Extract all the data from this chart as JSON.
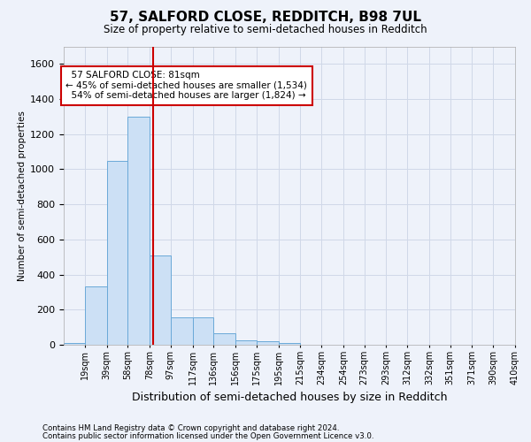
{
  "title": "57, SALFORD CLOSE, REDDITCH, B98 7UL",
  "subtitle": "Size of property relative to semi-detached houses in Redditch",
  "xlabel": "Distribution of semi-detached houses by size in Redditch",
  "ylabel": "Number of semi-detached properties",
  "footnote1": "Contains HM Land Registry data © Crown copyright and database right 2024.",
  "footnote2": "Contains public sector information licensed under the Open Government Licence v3.0.",
  "property_size": 81,
  "property_label": "57 SALFORD CLOSE: 81sqm",
  "pct_smaller": 45,
  "pct_larger": 54,
  "n_smaller": 1534,
  "n_larger": 1824,
  "bar_color": "#cce0f5",
  "bar_edge_color": "#6aa9d8",
  "vline_color": "#cc0000",
  "annotation_box_color": "#cc0000",
  "ylim": [
    0,
    1700
  ],
  "bin_starts": [
    0,
    19,
    39,
    58,
    78,
    97,
    117,
    136,
    156,
    175,
    195,
    215,
    234,
    254,
    273,
    293,
    312,
    332,
    351,
    371,
    390
  ],
  "bin_ends": [
    19,
    39,
    58,
    78,
    97,
    117,
    136,
    156,
    175,
    195,
    215,
    234,
    254,
    273,
    293,
    312,
    332,
    351,
    371,
    390,
    410
  ],
  "bin_labels": [
    "19sqm",
    "39sqm",
    "58sqm",
    "78sqm",
    "97sqm",
    "117sqm",
    "136sqm",
    "156sqm",
    "175sqm",
    "195sqm",
    "215sqm",
    "234sqm",
    "254sqm",
    "273sqm",
    "293sqm",
    "312sqm",
    "332sqm",
    "351sqm",
    "371sqm",
    "390sqm",
    "410sqm"
  ],
  "counts": [
    10,
    330,
    1050,
    1300,
    510,
    155,
    155,
    65,
    25,
    20,
    10,
    0,
    0,
    0,
    0,
    0,
    0,
    0,
    0,
    0,
    0
  ],
  "grid_color": "#d0d8e8",
  "background_color": "#eef2fa",
  "title_fontsize": 11,
  "subtitle_fontsize": 8.5,
  "ylabel_fontsize": 7.5,
  "xlabel_fontsize": 9
}
